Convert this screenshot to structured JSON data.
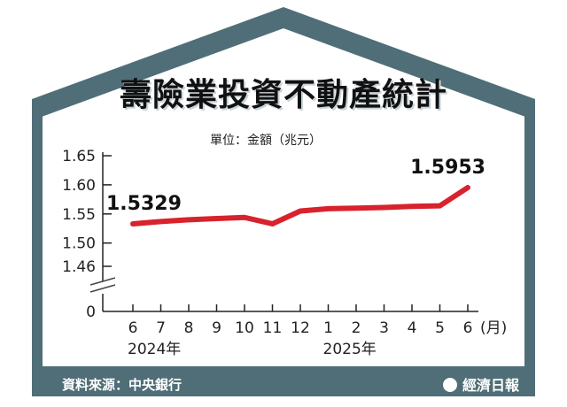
{
  "title": "壽險業投資不動產統計",
  "unit_label": "單位：金額（兆元）",
  "source": "資料來源：中央銀行",
  "brand": "經濟日報",
  "colors": {
    "frame": "#4f6e78",
    "frame_dark": "#3d5a64",
    "line": "#d8222c",
    "bg": "#ffffff"
  },
  "chart_data": {
    "type": "line",
    "x_month_labels": [
      "6",
      "7",
      "8",
      "9",
      "10",
      "11",
      "12",
      "1",
      "2",
      "3",
      "4",
      "5",
      "6"
    ],
    "x_unit": "(月)",
    "year_labels": [
      {
        "text": "2024年",
        "at_index": 0
      },
      {
        "text": "2025年",
        "at_index": 7
      }
    ],
    "values": [
      1.5329,
      1.537,
      1.54,
      1.542,
      1.544,
      1.533,
      1.555,
      1.559,
      1.56,
      1.561,
      1.563,
      1.564,
      1.5953
    ],
    "y_ticks": [
      "1.65",
      "1.60",
      "1.55",
      "1.50",
      "1.46",
      "0"
    ],
    "y_tick_values": [
      1.65,
      1.6,
      1.55,
      1.5,
      1.46
    ],
    "y_axis_break": true,
    "ylim": [
      1.46,
      1.65
    ],
    "data_labels": [
      {
        "index": 0,
        "text": "1.5329"
      },
      {
        "index": 12,
        "text": "1.5953"
      }
    ]
  }
}
